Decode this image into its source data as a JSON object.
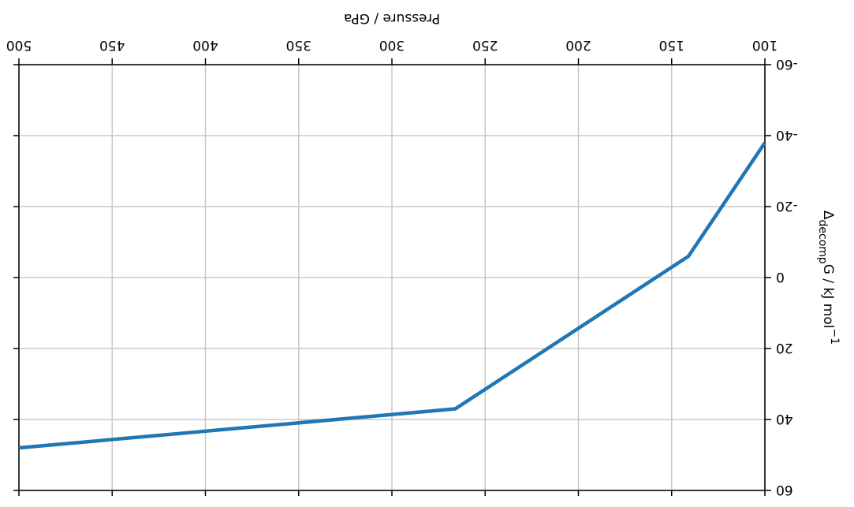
{
  "chart_data": {
    "type": "line",
    "xlabel": "Pressure / GPa",
    "ylabel_parts": [
      "Δ",
      "decomp",
      "G / kJ mol",
      "−1"
    ],
    "x": [
      100,
      141,
      266,
      500
    ],
    "series": [
      {
        "color": "#1f77b4",
        "values": [
          -38,
          -6,
          37,
          48
        ]
      }
    ],
    "xlim": [
      100,
      500
    ],
    "xticks": [
      100,
      150,
      200,
      250,
      300,
      350,
      400,
      450,
      500
    ],
    "ylim": [
      -60,
      60
    ],
    "yticks": [
      -60,
      -40,
      -20,
      0,
      20,
      40,
      60
    ],
    "grid": true,
    "rotation": 180
  }
}
